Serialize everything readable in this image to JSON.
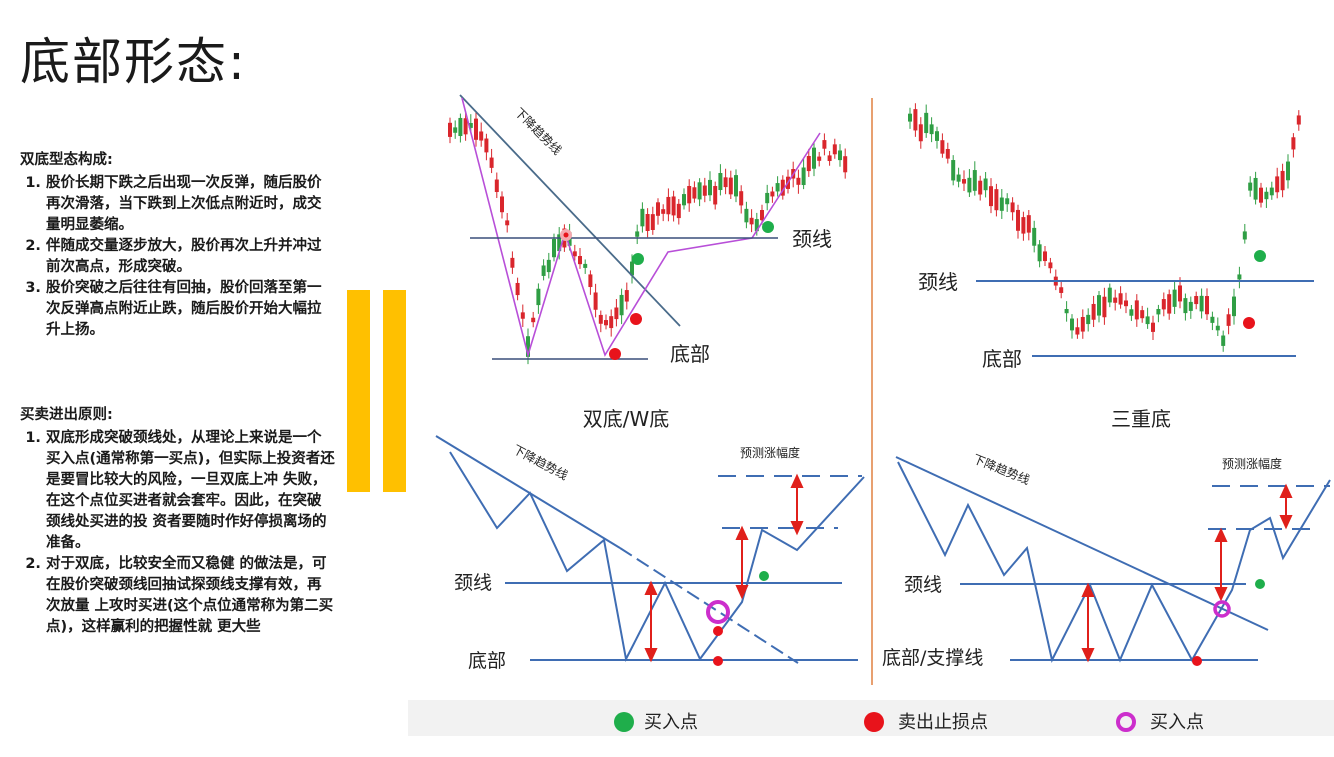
{
  "title": "底部形态:",
  "section1": {
    "heading": "双底型态构成:",
    "items": [
      "股价长期下跌之后出现一次反弹，随后股价再次滑落，当下跌到上次低点附近时，成交量明显萎缩。",
      "伴随成交量逐步放大，股价再次上升并冲过前次高点，形成突破。",
      "股价突破之后往往有回抽，股价回落至第一次反弹高点附近止跌，随后股价开始大幅拉升上扬。"
    ]
  },
  "section2": {
    "heading": "买卖进出原则:",
    "items": [
      "双底形成突破颈线处，从理论上来说是一个买入点(通常称第一买点)，但实际上投资者还是要冒比较大的风险，一旦双底上冲 失败，在这个点位买进者就会套牢。因此，在突破颈线处买进的投 资者要随时作好停损离场的准备。",
      "对于双底，比较安全而又稳健 的做法是，可在股价突破颈线回抽试探颈线支撑有效，再次放量 上攻时买进(这个点位通常称为第二买点)，这样赢利的把握性就 更大些"
    ]
  },
  "panels": {
    "w_chart": {
      "trend_label": "下降趋势线",
      "neck_label": "颈线",
      "bottom_label": "底部",
      "caption": "双底/W底"
    },
    "triple_chart": {
      "neck_label": "颈线",
      "bottom_label": "底部",
      "caption": "三重底"
    },
    "w_diagram": {
      "trend_label": "下降趋势线",
      "forecast_label": "预测涨幅度",
      "neck_label": "颈线",
      "bottom_label": "底部"
    },
    "triple_diagram": {
      "trend_label": "下降趋势线",
      "forecast_label": "预测涨幅度",
      "neck_label": "颈线",
      "bottom_label": "底部/支撑线"
    }
  },
  "legend": {
    "buy": "买入点",
    "sell": "卖出止损点",
    "buy2": "买入点"
  },
  "colors": {
    "accent_bar": "#ffc000",
    "line_blue": "#3f6db3",
    "arrow_red": "#e0201b",
    "buy_green": "#1fae4b",
    "sell_red": "#e8131b",
    "buy2_magenta": "#cc2ecc",
    "trend_purple": "#b84fd8",
    "divider_orange": "#e8a070"
  }
}
